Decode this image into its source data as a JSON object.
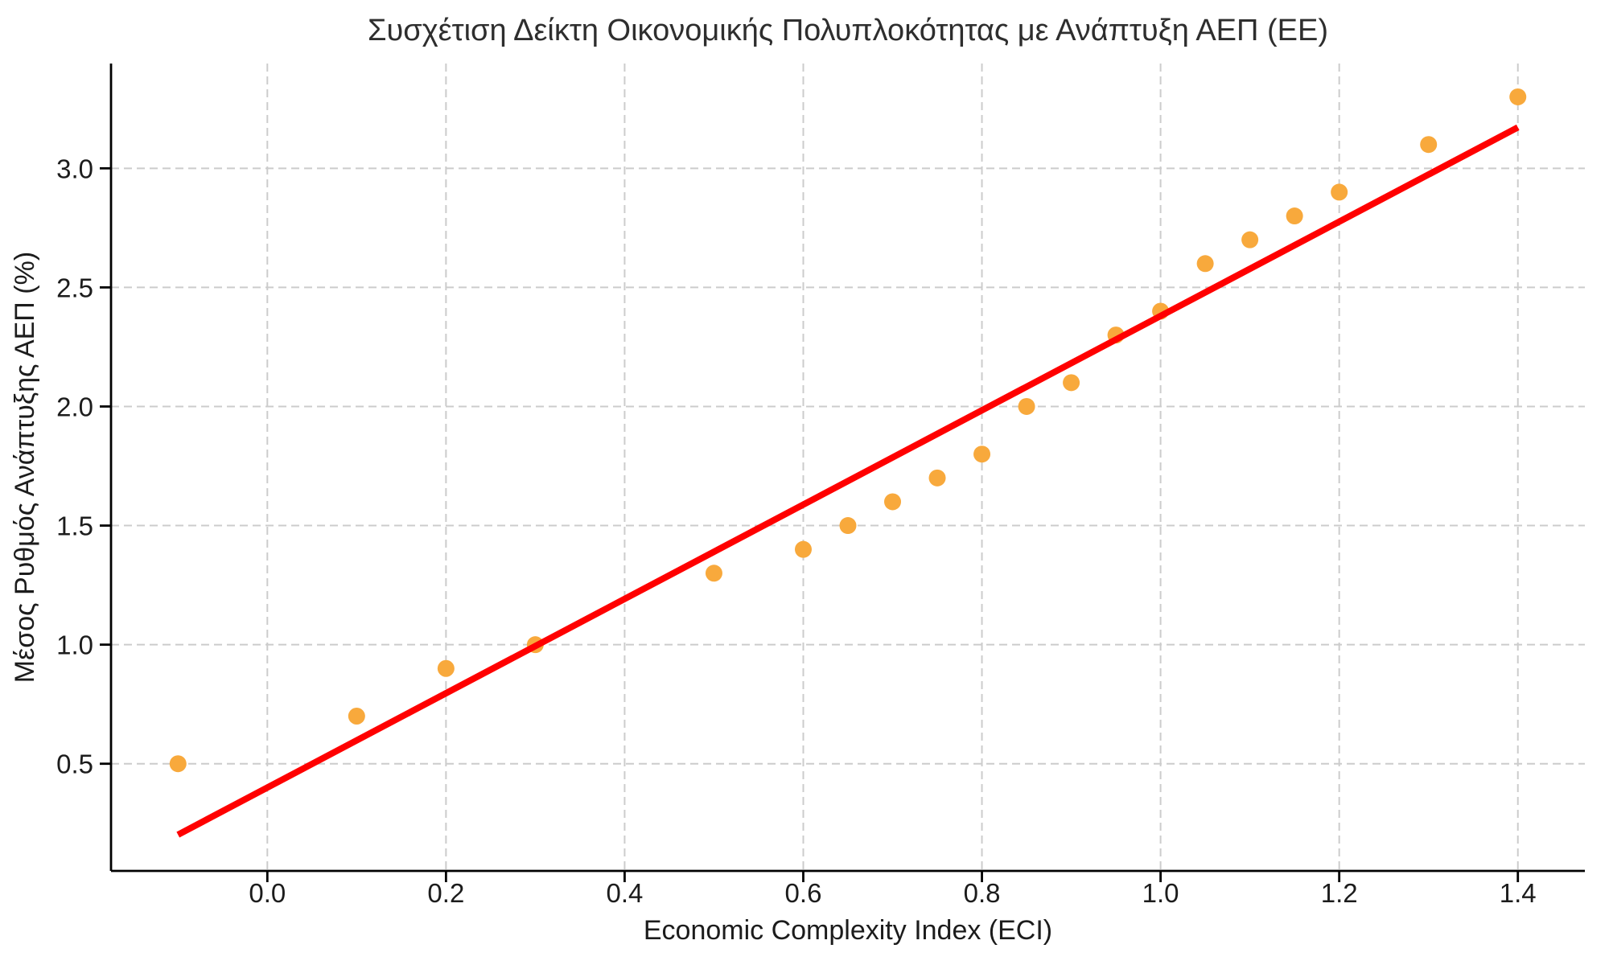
{
  "figure": {
    "background": "#ffffff"
  },
  "chart_data": {
    "type": "scatter",
    "title": "Συσχέτιση Δείκτη Οικονομικής Πολυπλοκότητας με Ανάπτυξη ΑΕΠ (ΕΕ)",
    "xlabel": "Economic Complexity Index (ECI)",
    "ylabel": "Μέσος Ρυθμός Ανάπτυξης ΑΕΠ (%)",
    "points": [
      [
        -0.1,
        0.5
      ],
      [
        0.1,
        0.7
      ],
      [
        0.2,
        0.9
      ],
      [
        0.3,
        1.0
      ],
      [
        0.5,
        1.3
      ],
      [
        0.6,
        1.4
      ],
      [
        0.65,
        1.5
      ],
      [
        0.7,
        1.6
      ],
      [
        0.75,
        1.7
      ],
      [
        0.8,
        1.8
      ],
      [
        0.85,
        2.0
      ],
      [
        0.9,
        2.1
      ],
      [
        0.95,
        2.3
      ],
      [
        1.0,
        2.4
      ],
      [
        1.05,
        2.6
      ],
      [
        1.1,
        2.7
      ],
      [
        1.15,
        2.8
      ],
      [
        1.2,
        2.9
      ],
      [
        1.3,
        3.1
      ],
      [
        1.4,
        3.3
      ]
    ],
    "trend_line": {
      "type": "linear",
      "slope": 1.98,
      "intercept": 0.4,
      "x_start": -0.1,
      "x_end": 1.4
    },
    "xlim": [
      -0.175,
      1.475
    ],
    "ylim": [
      0.05,
      3.44
    ],
    "x_ticks": [
      0.0,
      0.2,
      0.4,
      0.6,
      0.8,
      1.0,
      1.2,
      1.4
    ],
    "y_ticks": [
      0.5,
      1.0,
      1.5,
      2.0,
      2.5,
      3.0
    ],
    "tick_decimals": 1,
    "grid": true,
    "legend_position": "none",
    "marker_color": "#F8A93C",
    "trend_color": "#FF0000",
    "grid_color": "#cccccc"
  }
}
